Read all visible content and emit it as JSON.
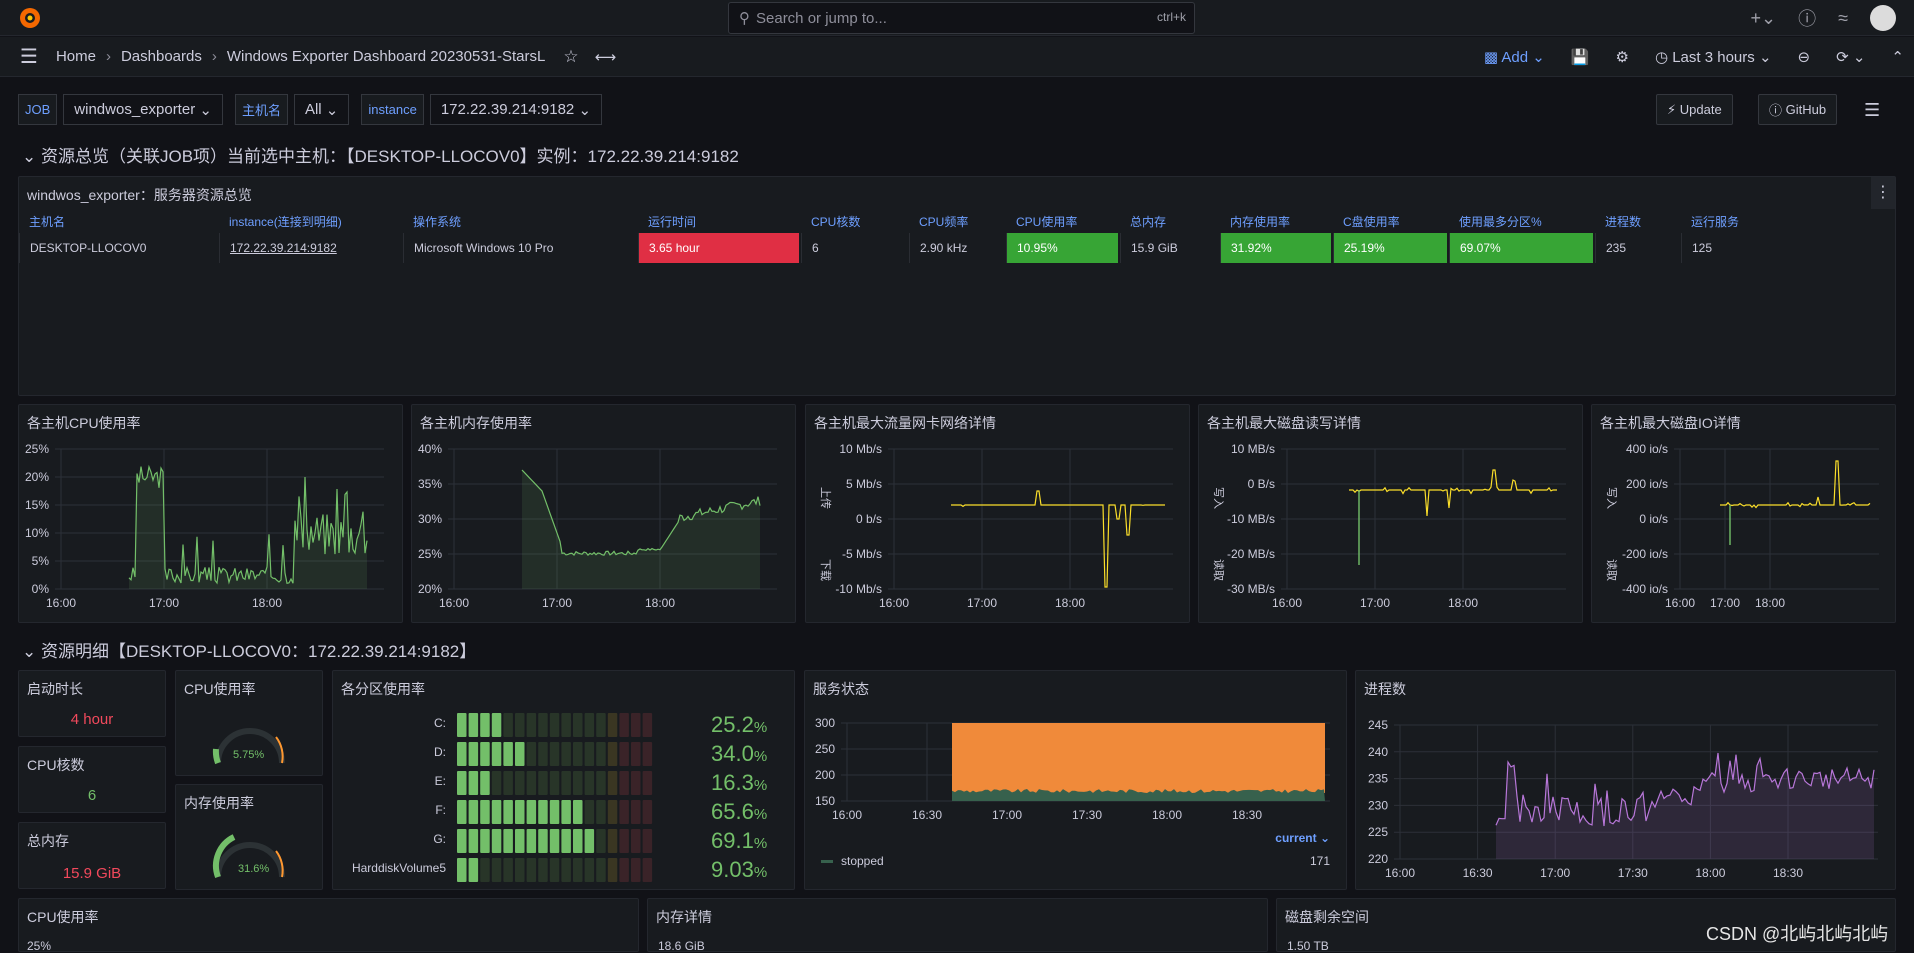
{
  "app": {
    "search_placeholder": "Search or jump to...",
    "search_shortcut": "ctrl+k"
  },
  "nav": {
    "home": "Home",
    "dashboards": "Dashboards",
    "title": "Windows Exporter Dashboard 20230531-StarsL",
    "add": "Add",
    "time_range": "Last 3 hours"
  },
  "vars": {
    "job_label": "JOB",
    "job_value": "windwos_exporter",
    "host_label": "主机名",
    "host_value": "All",
    "instance_label": "instance",
    "instance_value": "172.22.39.214:9182"
  },
  "buttons": {
    "update": "Update",
    "github": "GitHub"
  },
  "row1": {
    "title": "资源总览（关联JOB项）当前选中主机：【DESKTOP-LLOCOV0】实例：172.22.39.214:9182"
  },
  "overview": {
    "title": "windwos_exporter：服务器资源总览",
    "headers": [
      "主机名",
      "instance(连接到明细)",
      "操作系统",
      "运行时间",
      "CPU核数",
      "CPU频率",
      "CPU使用率",
      "总内存",
      "内存使用率",
      "C盘使用率",
      "使用最多分区%",
      "进程数",
      "运行服务"
    ],
    "cells": [
      "DESKTOP-LLOCOV0",
      "172.22.39.214:9182",
      "Microsoft Windows 10 Pro",
      "3.65 hour",
      "6",
      "2.90 kHz",
      "10.95%",
      "15.9 GiB",
      "31.92%",
      "25.19%",
      "69.07%",
      "235",
      "125"
    ]
  },
  "charts": {
    "cpu": {
      "title": "各主机CPU使用率",
      "yticks": [
        "25%",
        "20%",
        "15%",
        "10%",
        "5%",
        "0%"
      ],
      "xticks": [
        "16:00",
        "17:00",
        "18:00"
      ]
    },
    "mem": {
      "title": "各主机内存使用率",
      "yticks": [
        "40%",
        "35%",
        "30%",
        "25%",
        "20%"
      ],
      "xticks": [
        "16:00",
        "17:00",
        "18:00"
      ]
    },
    "net": {
      "title": "各主机最大流量网卡网络详情",
      "yticks": [
        "10 Mb/s",
        "5 Mb/s",
        "0 b/s",
        "-5 Mb/s",
        "-10 Mb/s"
      ],
      "xticks": [
        "16:00",
        "17:00",
        "18:00"
      ],
      "up": "上传",
      "down": "下载"
    },
    "disk": {
      "title": "各主机最大磁盘读写详情",
      "yticks": [
        "10 MB/s",
        "0 B/s",
        "-10 MB/s",
        "-20 MB/s",
        "-30 MB/s"
      ],
      "xticks": [
        "16:00",
        "17:00",
        "18:00"
      ],
      "up": "写入",
      "down": "读取"
    },
    "io": {
      "title": "各主机最大磁盘IO详情",
      "yticks": [
        "400 io/s",
        "200 io/s",
        "0 io/s",
        "-200 io/s",
        "-400 io/s"
      ],
      "xticks": [
        "16:00",
        "17:00",
        "18:00"
      ],
      "up": "写入",
      "down": "读取"
    }
  },
  "row2": {
    "title": "资源明细【DESKTOP-LLOCOV0：172.22.39.214:9182】"
  },
  "stats": {
    "uptime_title": "启动时长",
    "uptime_value": "4 hour",
    "cores_title": "CPU核数",
    "cores_value": "6",
    "mem_title": "总内存",
    "mem_value": "15.9 GiB",
    "cpu_title": "CPU使用率",
    "cpu_value": "5.75%",
    "memuse_title": "内存使用率",
    "memuse_value": "31.6%"
  },
  "partitions": {
    "title": "各分区使用率",
    "items": [
      {
        "name": "C:",
        "value": "25.2",
        "pct": 25.2
      },
      {
        "name": "D:",
        "value": "34.0",
        "pct": 34.0
      },
      {
        "name": "E:",
        "value": "16.3",
        "pct": 16.3
      },
      {
        "name": "F:",
        "value": "65.6",
        "pct": 65.6
      },
      {
        "name": "G:",
        "value": "69.1",
        "pct": 69.1
      },
      {
        "name": "HarddiskVolume5",
        "value": "9.03",
        "pct": 9.03
      }
    ]
  },
  "service": {
    "title": "服务状态",
    "yticks": [
      "300",
      "250",
      "200",
      "150"
    ],
    "xticks": [
      "16:00",
      "16:30",
      "17:00",
      "17:30",
      "18:00",
      "18:30"
    ],
    "legend_header": "current",
    "legend_name": "stopped",
    "legend_value": "171"
  },
  "procs": {
    "title": "进程数",
    "yticks": [
      "245",
      "240",
      "235",
      "230",
      "225",
      "220"
    ],
    "xticks": [
      "16:00",
      "16:30",
      "17:00",
      "17:30",
      "18:00",
      "18:30"
    ]
  },
  "bottom": {
    "cpu_title": "CPU使用率",
    "cpu_tick": "25%",
    "mem_title": "内存详情",
    "mem_tick": "18.6 GiB",
    "disk_title": "磁盘剩余空间",
    "disk_tick": "1.50 TB"
  },
  "watermark": "CSDN @北屿北屿北屿",
  "colors": {
    "green": "#73bf69",
    "yellow": "#fade2a",
    "orange": "#ff9830",
    "purple": "#b877d9",
    "red": "#e02f44",
    "blue": "#6e9fff"
  }
}
